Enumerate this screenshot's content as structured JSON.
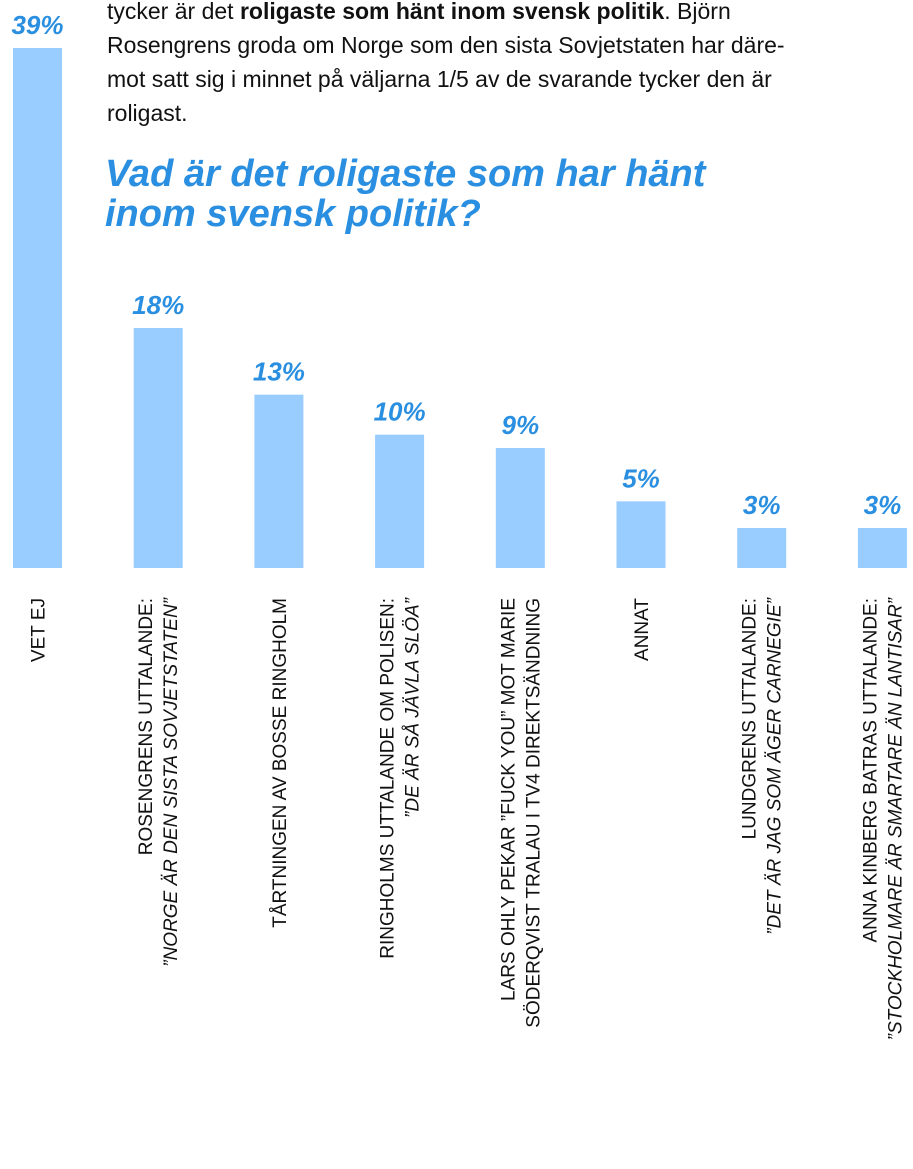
{
  "intro": {
    "line1": [
      "tycker är det ",
      "roligaste som hänt inom svensk politik",
      ". Björn"
    ],
    "line2": "Rosengrens groda om Norge som den sista Sovjetstaten har däre-",
    "line3": "mot satt sig i minnet på väljarna 1/5 av de svarande tycker den är",
    "line4": "roligast."
  },
  "chart_data": {
    "type": "bar",
    "title": [
      "Vad är det roligaste som har hänt",
      "inom svensk politik?"
    ],
    "categories": [
      [
        "VET EJ"
      ],
      [
        "ROSENGRENS UTTALANDE:",
        "”NORGE ÄR DEN SISTA SOVJETSTATEN”"
      ],
      [
        "TÅRTNINGEN AV BOSSE RINGHOLM"
      ],
      [
        "RINGHOLMS UTTALANDE OM POLISEN:",
        "”DE ÄR SÅ JÄVLA SLÖA”"
      ],
      [
        "LARS OHLY PEKAR ”FUCK YOU” MOT MARIE",
        "SÖDERQVIST TRALAU I TV4 DIREKTSÄNDNING"
      ],
      [
        "ANNAT"
      ],
      [
        "LUNDGRENS UTTALANDE:",
        "”DET ÄR JAG SOM ÄGER CARNEGIE”"
      ],
      [
        "ANNA KINBERG BATRAS UTTALANDE:",
        "”STOCKHOLMARE ÄR SMARTARE ÄN LANTISAR”"
      ]
    ],
    "values": [
      39,
      18,
      13,
      10,
      9,
      5,
      3,
      3
    ],
    "value_labels": [
      "39%",
      "18%",
      "13%",
      "10%",
      "9%",
      "5%",
      "3%",
      "3%"
    ],
    "color": "#99ccff",
    "ylim": [
      0,
      39
    ]
  }
}
